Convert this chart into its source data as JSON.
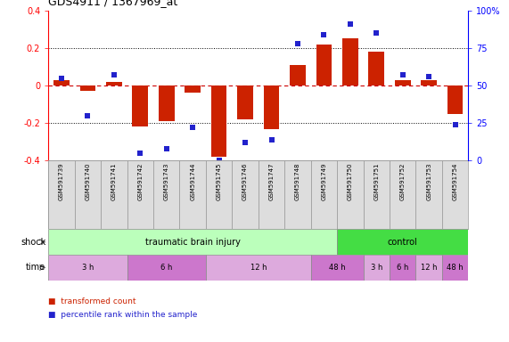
{
  "title": "GDS4911 / 1367969_at",
  "samples": [
    "GSM591739",
    "GSM591740",
    "GSM591741",
    "GSM591742",
    "GSM591743",
    "GSM591744",
    "GSM591745",
    "GSM591746",
    "GSM591747",
    "GSM591748",
    "GSM591749",
    "GSM591750",
    "GSM591751",
    "GSM591752",
    "GSM591753",
    "GSM591754"
  ],
  "red_bars": [
    0.03,
    -0.03,
    0.02,
    -0.22,
    -0.19,
    -0.04,
    -0.38,
    -0.18,
    -0.23,
    0.11,
    0.22,
    0.25,
    0.18,
    0.03,
    0.03,
    -0.15
  ],
  "blue_pct": [
    55,
    30,
    57,
    5,
    8,
    22,
    0,
    12,
    14,
    78,
    84,
    91,
    85,
    57,
    56,
    24
  ],
  "ylim_left": [
    -0.4,
    0.4
  ],
  "ylim_right": [
    0,
    100
  ],
  "yticks_left": [
    -0.4,
    -0.2,
    0.0,
    0.2,
    0.4
  ],
  "yticks_right": [
    0,
    25,
    50,
    75,
    100
  ],
  "ytick_labels_right": [
    "0",
    "25",
    "50",
    "75",
    "100%"
  ],
  "ytick_labels_left": [
    "-0.4",
    "-0.2",
    "0",
    "0.2",
    "0.4"
  ],
  "bar_color": "#cc2200",
  "square_color": "#2222cc",
  "zeroline_color": "#cc0000",
  "bg_color": "#ffffff",
  "shock_groups": [
    {
      "label": "traumatic brain injury",
      "start": 0,
      "end": 11,
      "color": "#bbffbb"
    },
    {
      "label": "control",
      "start": 11,
      "end": 16,
      "color": "#44dd44"
    }
  ],
  "time_groups": [
    {
      "label": "3 h",
      "start": 0,
      "end": 3,
      "color": "#ddaadd"
    },
    {
      "label": "6 h",
      "start": 3,
      "end": 6,
      "color": "#cc77cc"
    },
    {
      "label": "12 h",
      "start": 6,
      "end": 10,
      "color": "#ddaadd"
    },
    {
      "label": "48 h",
      "start": 10,
      "end": 12,
      "color": "#cc77cc"
    },
    {
      "label": "3 h",
      "start": 12,
      "end": 13,
      "color": "#ddaadd"
    },
    {
      "label": "6 h",
      "start": 13,
      "end": 14,
      "color": "#cc77cc"
    },
    {
      "label": "12 h",
      "start": 14,
      "end": 15,
      "color": "#ddaadd"
    },
    {
      "label": "48 h",
      "start": 15,
      "end": 16,
      "color": "#cc77cc"
    }
  ]
}
